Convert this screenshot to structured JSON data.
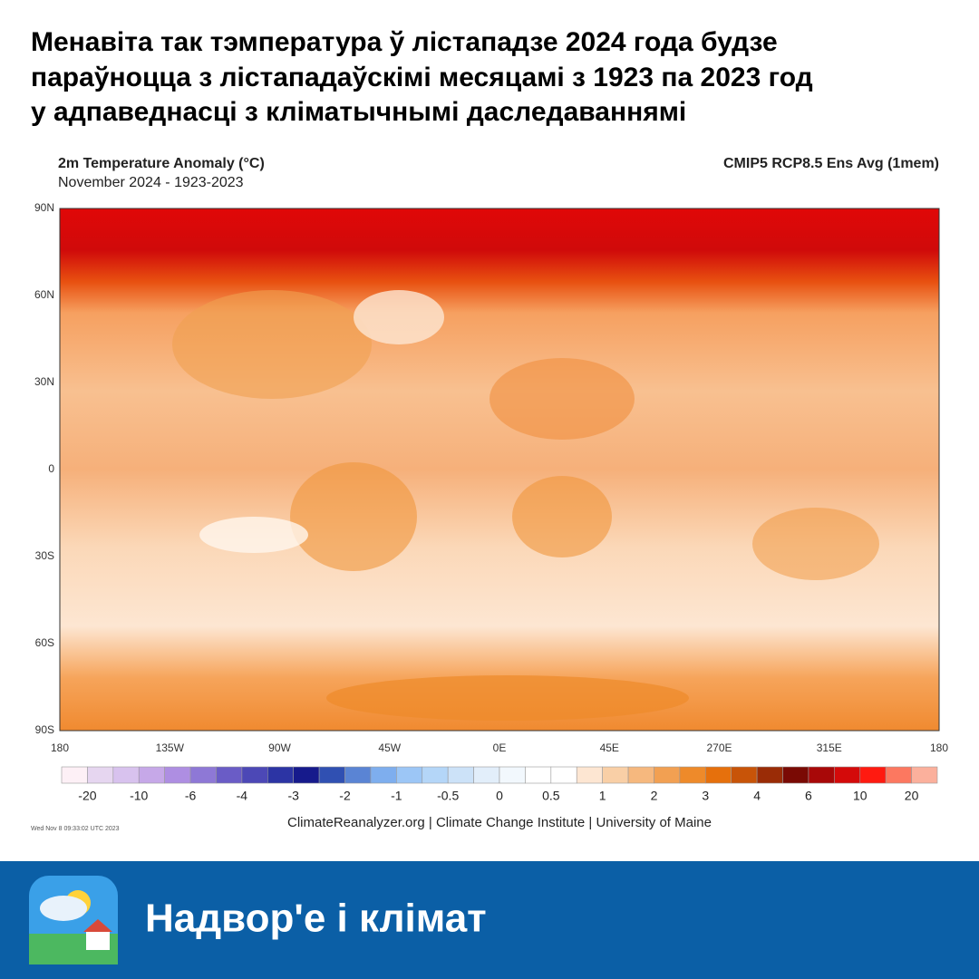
{
  "header": {
    "title_lines": [
      "Менавіта так тэмпература ў лістападзе 2024 года будзе",
      "параўноцца з лістападаўскімі месяцамі з 1923 па 2023 год",
      "у адпаведнасці з кліматычнымі даследаваннямі"
    ]
  },
  "map": {
    "title": "2m Temperature Anomaly (°C)",
    "subtitle": "November 2024 - 1923-2023",
    "model": "CMIP5 RCP8.5 Ens Avg (1mem)",
    "lat_labels": [
      "90N",
      "60N",
      "30N",
      "0",
      "30S",
      "60S",
      "90S"
    ],
    "lon_labels": [
      "180",
      "135W",
      "90W",
      "45W",
      "0E",
      "45E",
      "270E",
      "315E",
      "180"
    ]
  },
  "colorbar": {
    "colors": [
      "#fdf0f6",
      "#e6d6f0",
      "#d8c2ee",
      "#c6a8e8",
      "#ae8ee2",
      "#8e78d6",
      "#6a5cc6",
      "#4c48b6",
      "#2c34a4",
      "#161a8c",
      "#3050b2",
      "#5a84d4",
      "#7eaeee",
      "#9cc6f6",
      "#b4d6f8",
      "#cce2f8",
      "#e2eefa",
      "#f2f8fd",
      "#ffffff",
      "#ffffff",
      "#fde6d2",
      "#f9cfa6",
      "#f6b87e",
      "#f2a052",
      "#ee8a2a",
      "#e6700c",
      "#c85408",
      "#9a2c06",
      "#7a0a04",
      "#a80808",
      "#d40a0a",
      "#ff1a10",
      "#fc7860",
      "#fbb09c"
    ],
    "labels": [
      "-20",
      "-10",
      "-6",
      "-4",
      "-3",
      "-2",
      "-1",
      "-0.5",
      "0",
      "0.5",
      "1",
      "2",
      "3",
      "4",
      "6",
      "10",
      "20"
    ]
  },
  "timestamp": "Wed Nov  8 09:33:02 UTC 2023",
  "credit": "ClimateReanalyzer.org | Climate Change Institute | University of Maine",
  "banner": {
    "text": "Надвор'е і клімат"
  }
}
